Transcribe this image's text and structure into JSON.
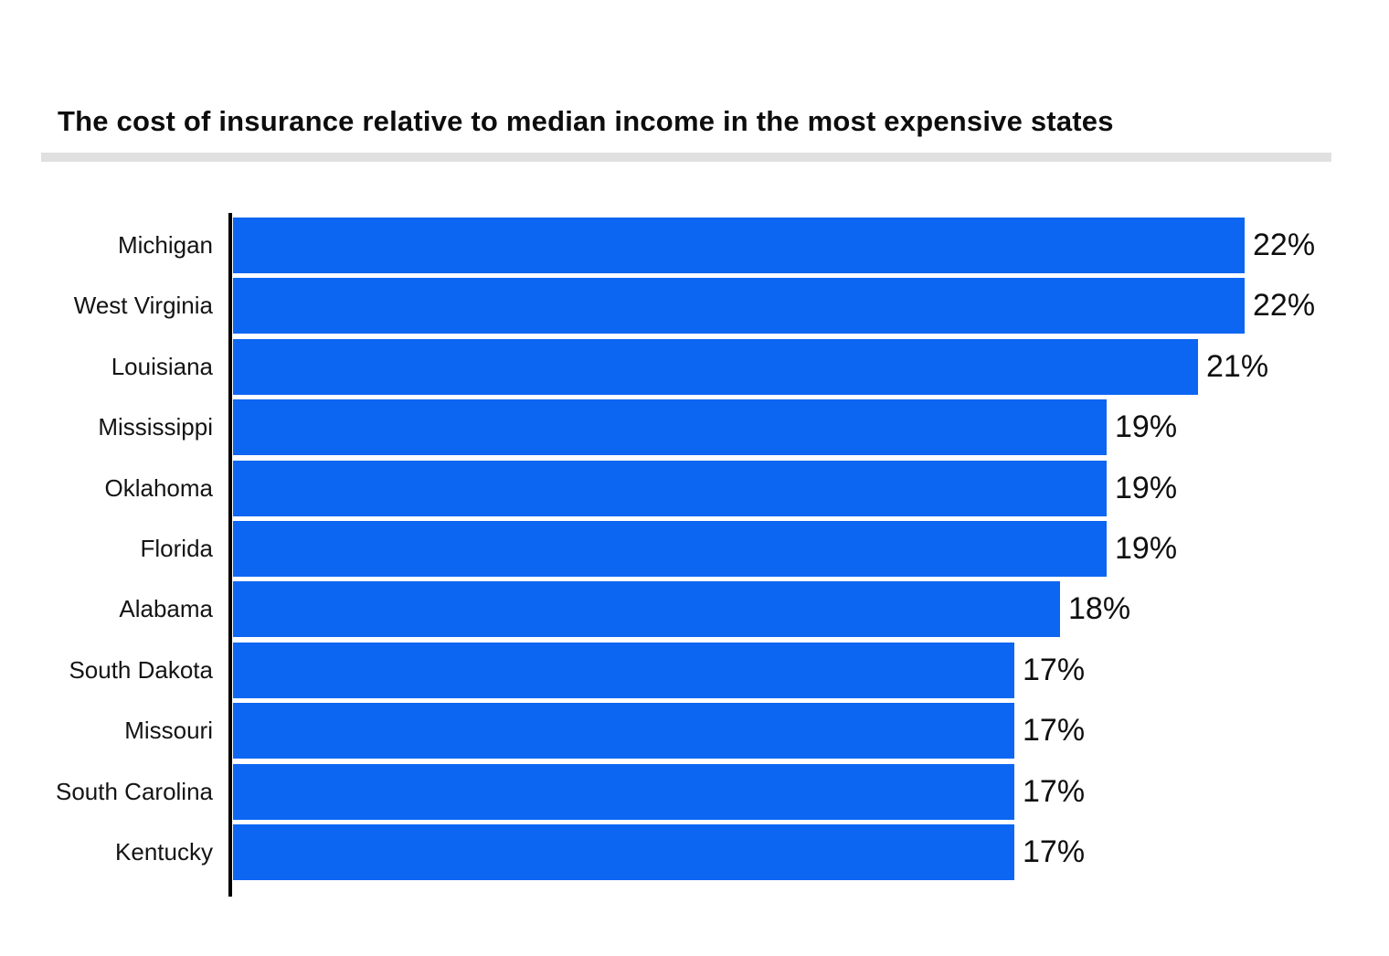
{
  "header": {
    "title": "The cost of insurance relative to median income in the most expensive states"
  },
  "chart_data": {
    "type": "bar",
    "orientation": "horizontal",
    "title": "The cost of insurance relative to median income in the most expensive states",
    "categories": [
      "Michigan",
      "West Virginia",
      "Louisiana",
      "Mississippi",
      "Oklahoma",
      "Florida",
      "Alabama",
      "South Dakota",
      "Missouri",
      "South Carolina",
      "Kentucky"
    ],
    "values": [
      22,
      22,
      21,
      19,
      19,
      19,
      18,
      17,
      17,
      17,
      17
    ],
    "value_labels": [
      "22%",
      "22%",
      "21%",
      "19%",
      "19%",
      "19%",
      "18%",
      "17%",
      "17%",
      "17%",
      "17%"
    ],
    "xlabel": "",
    "ylabel": "",
    "xlim": [
      0,
      22
    ],
    "unit": "%",
    "grid": "off",
    "legend": "none",
    "colors": {
      "bar": "#0d66f2",
      "axis": "#000000",
      "title_text": "#0d0d0d",
      "label_text": "#141414",
      "divider": "#e0e0e0",
      "background": "#ffffff"
    }
  }
}
